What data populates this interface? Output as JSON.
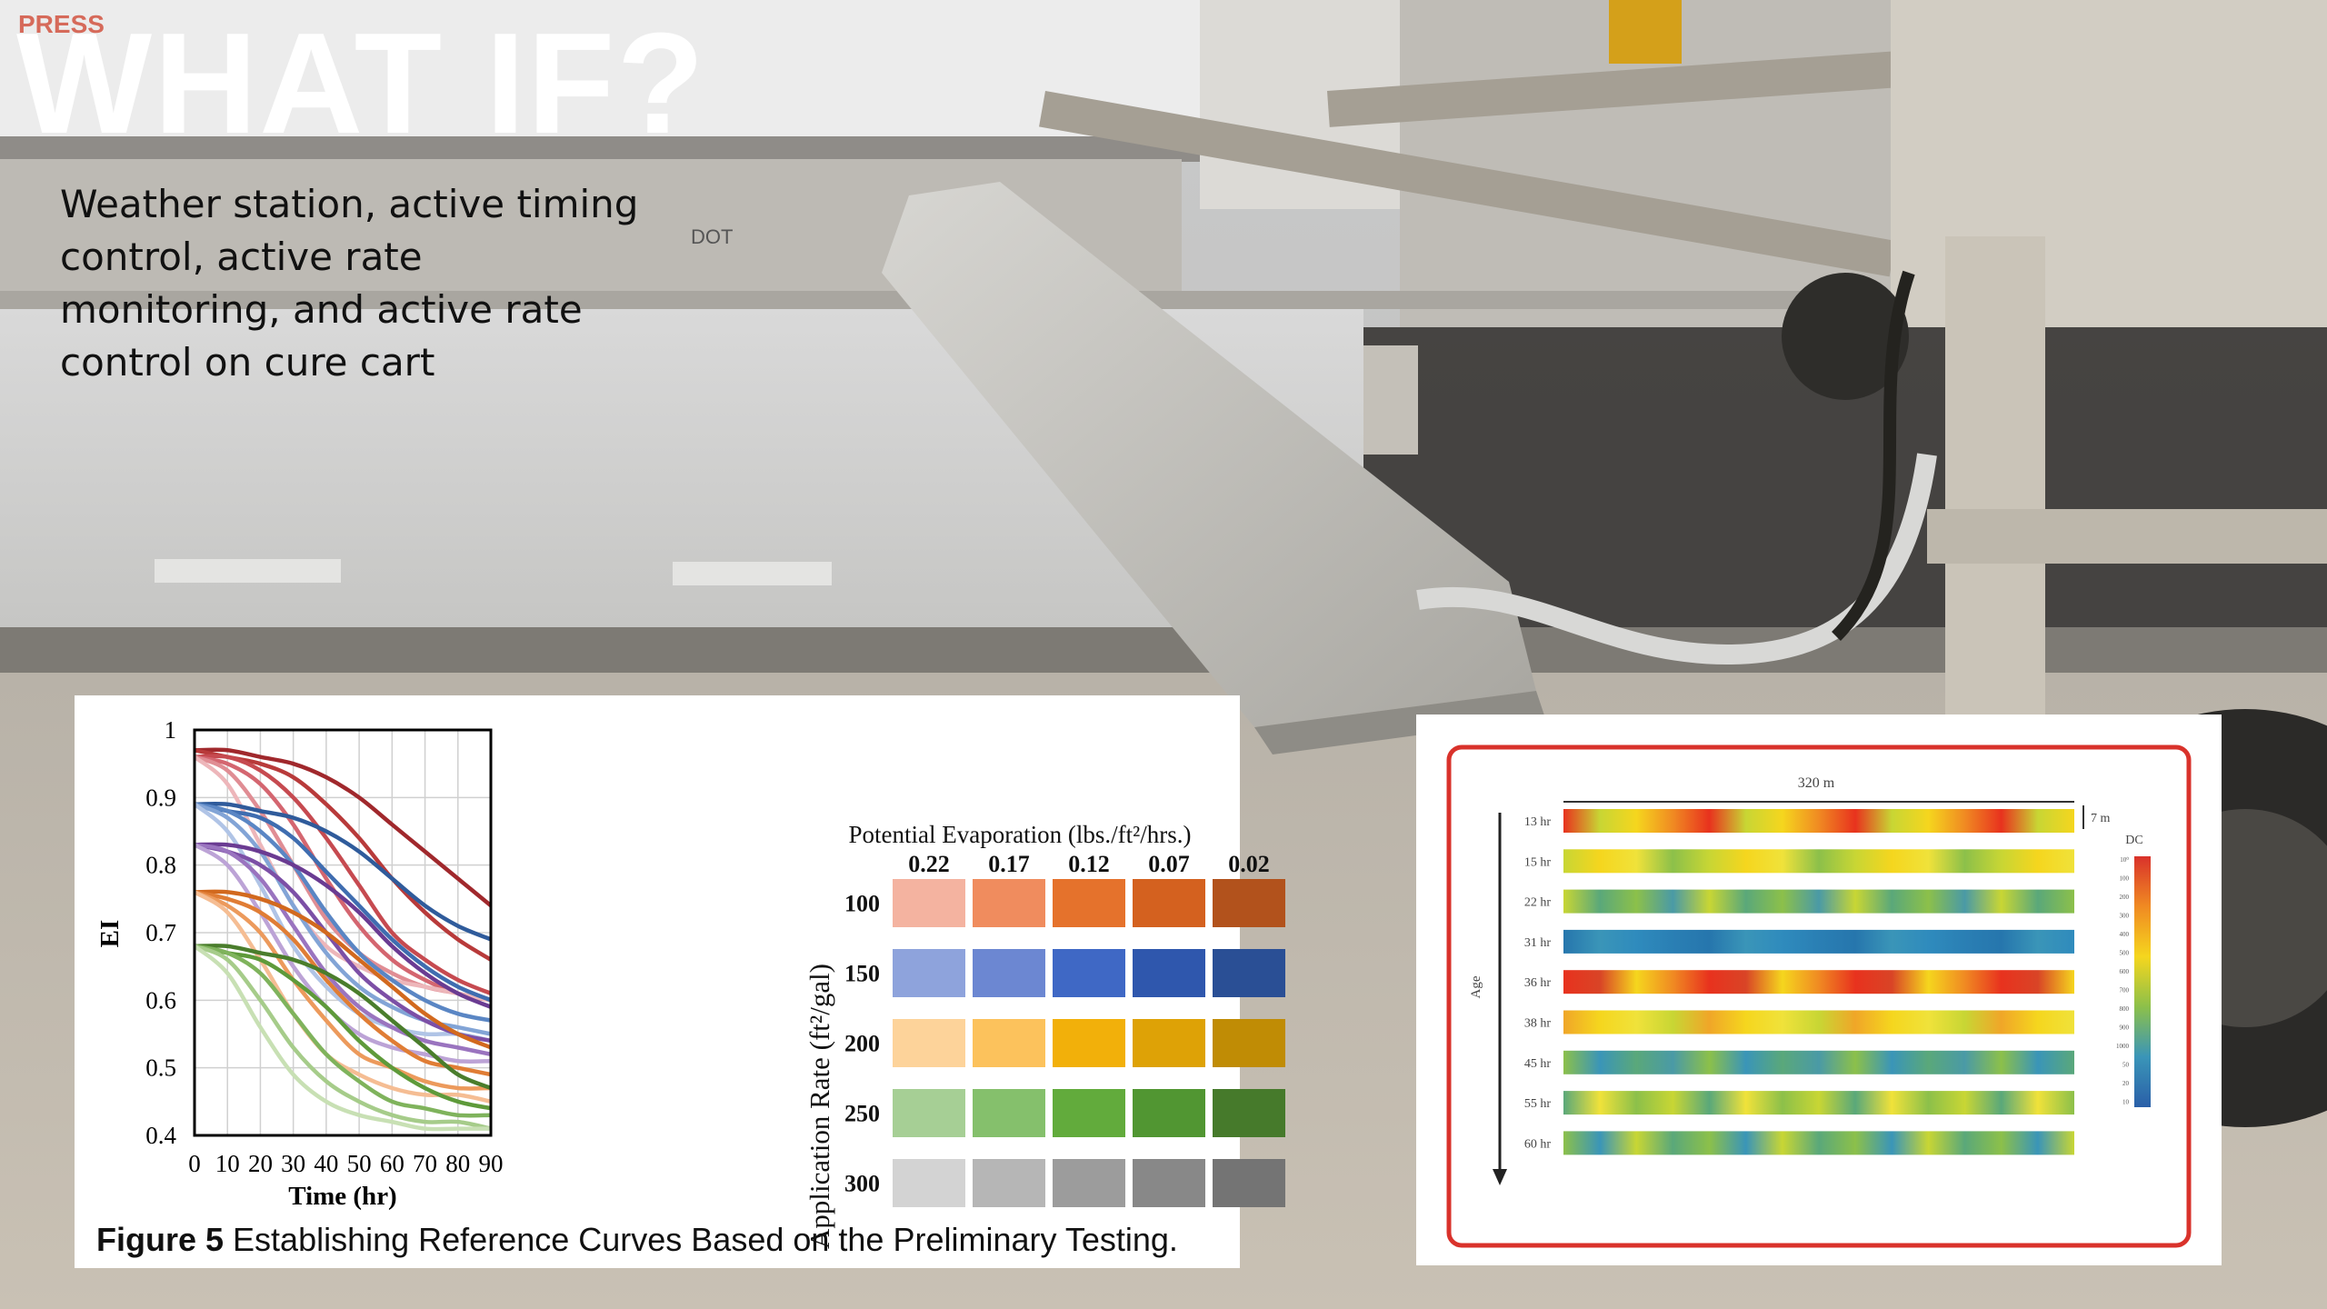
{
  "slide": {
    "title": "WHAT IF?",
    "body": "Weather station, active timing control, active rate monitoring, and active rate control on cure cart",
    "background_text": {
      "trailer_brand": "PRESS",
      "barrier_text": "DOT"
    }
  },
  "figure5": {
    "caption_label": "Figure 5",
    "caption_text": " Establishing Reference Curves Based on the Preliminary Testing.",
    "matrix": {
      "column_title": "Potential Evaporation (lbs./ft²/hrs.)",
      "row_title": "Application Rate (ft²/gal)",
      "columns": [
        "0.22",
        "0.17",
        "0.12",
        "0.07",
        "0.02"
      ],
      "rows": [
        "100",
        "150",
        "200",
        "250",
        "300"
      ],
      "colors": [
        [
          "#f4b3a0",
          "#f08c5e",
          "#e5722c",
          "#d4611f",
          "#b2521c"
        ],
        [
          "#8ea3dc",
          "#6c87d2",
          "#3f68c5",
          "#2f57ad",
          "#2a4f95"
        ],
        [
          "#fdd39a",
          "#fcc25c",
          "#f2b00a",
          "#dea206",
          "#c08c05"
        ],
        [
          "#a6cf95",
          "#85c06c",
          "#62ab3c",
          "#519632",
          "#467a2b"
        ],
        [
          "#d3d3d3",
          "#b6b6b6",
          "#9c9c9c",
          "#888888",
          "#747474"
        ]
      ]
    },
    "chart_data": {
      "type": "line",
      "title": "",
      "xlabel": "Time (hr)",
      "ylabel": "EI",
      "xlim": [
        0,
        90
      ],
      "ylim": [
        0.4,
        1
      ],
      "xticks": [
        "0",
        "10",
        "20",
        "30",
        "40",
        "50",
        "60",
        "70",
        "80",
        "90"
      ],
      "yticks": [
        "1",
        "0.9",
        "0.8",
        "0.7",
        "0.6",
        "0.5",
        "0.4"
      ],
      "grid": true,
      "x": [
        0,
        10,
        20,
        30,
        40,
        50,
        60,
        70,
        80,
        90
      ],
      "series": [
        {
          "color": "#a0282c",
          "values": [
            0.97,
            0.97,
            0.96,
            0.95,
            0.93,
            0.9,
            0.86,
            0.82,
            0.78,
            0.74
          ]
        },
        {
          "color": "#b83a3a",
          "values": [
            0.97,
            0.96,
            0.95,
            0.93,
            0.89,
            0.84,
            0.78,
            0.73,
            0.69,
            0.66
          ]
        },
        {
          "color": "#c64a50",
          "values": [
            0.96,
            0.96,
            0.94,
            0.9,
            0.84,
            0.77,
            0.7,
            0.66,
            0.63,
            0.61
          ]
        },
        {
          "color": "#d46670",
          "values": [
            0.96,
            0.95,
            0.92,
            0.86,
            0.78,
            0.71,
            0.66,
            0.63,
            0.61,
            0.6
          ]
        },
        {
          "color": "#e08d94",
          "values": [
            0.96,
            0.94,
            0.88,
            0.8,
            0.72,
            0.67,
            0.64,
            0.62,
            0.61,
            0.6
          ]
        },
        {
          "color": "#edb6ba",
          "values": [
            0.96,
            0.92,
            0.83,
            0.74,
            0.68,
            0.65,
            0.63,
            0.62,
            0.61,
            0.6
          ]
        },
        {
          "color": "#2f5b9b",
          "values": [
            0.89,
            0.89,
            0.88,
            0.87,
            0.85,
            0.82,
            0.78,
            0.74,
            0.71,
            0.69
          ]
        },
        {
          "color": "#3f6db0",
          "values": [
            0.89,
            0.88,
            0.87,
            0.84,
            0.79,
            0.74,
            0.69,
            0.65,
            0.62,
            0.6
          ]
        },
        {
          "color": "#5a86c4",
          "values": [
            0.89,
            0.88,
            0.85,
            0.8,
            0.73,
            0.67,
            0.63,
            0.6,
            0.58,
            0.57
          ]
        },
        {
          "color": "#82a4d6",
          "values": [
            0.89,
            0.87,
            0.82,
            0.74,
            0.67,
            0.62,
            0.59,
            0.57,
            0.56,
            0.55
          ]
        },
        {
          "color": "#b0c4e6",
          "values": [
            0.89,
            0.85,
            0.77,
            0.68,
            0.62,
            0.58,
            0.56,
            0.55,
            0.55,
            0.54
          ]
        },
        {
          "color": "#6a3b92",
          "values": [
            0.83,
            0.83,
            0.82,
            0.8,
            0.77,
            0.73,
            0.68,
            0.64,
            0.61,
            0.59
          ]
        },
        {
          "color": "#7c4fa6",
          "values": [
            0.83,
            0.82,
            0.8,
            0.76,
            0.7,
            0.64,
            0.6,
            0.57,
            0.55,
            0.54
          ]
        },
        {
          "color": "#9a74bf",
          "values": [
            0.83,
            0.82,
            0.78,
            0.71,
            0.64,
            0.59,
            0.56,
            0.54,
            0.53,
            0.52
          ]
        },
        {
          "color": "#bca3d6",
          "values": [
            0.83,
            0.8,
            0.73,
            0.65,
            0.59,
            0.55,
            0.53,
            0.52,
            0.51,
            0.51
          ]
        },
        {
          "color": "#d2691e",
          "values": [
            0.76,
            0.76,
            0.75,
            0.73,
            0.7,
            0.66,
            0.62,
            0.58,
            0.55,
            0.53
          ]
        },
        {
          "color": "#e07d35",
          "values": [
            0.76,
            0.75,
            0.73,
            0.69,
            0.63,
            0.58,
            0.54,
            0.51,
            0.5,
            0.49
          ]
        },
        {
          "color": "#ec9a5c",
          "values": [
            0.76,
            0.74,
            0.7,
            0.63,
            0.57,
            0.52,
            0.5,
            0.48,
            0.47,
            0.47
          ]
        },
        {
          "color": "#f5bd93",
          "values": [
            0.76,
            0.73,
            0.66,
            0.58,
            0.52,
            0.49,
            0.47,
            0.46,
            0.46,
            0.45
          ]
        },
        {
          "color": "#4a7d2c",
          "values": [
            0.68,
            0.68,
            0.67,
            0.66,
            0.64,
            0.61,
            0.57,
            0.53,
            0.49,
            0.47
          ]
        },
        {
          "color": "#5e9a3a",
          "values": [
            0.68,
            0.67,
            0.66,
            0.63,
            0.59,
            0.54,
            0.5,
            0.47,
            0.45,
            0.44
          ]
        },
        {
          "color": "#7fb35c",
          "values": [
            0.68,
            0.67,
            0.64,
            0.58,
            0.52,
            0.48,
            0.45,
            0.44,
            0.43,
            0.43
          ]
        },
        {
          "color": "#a6cc8a",
          "values": [
            0.68,
            0.66,
            0.6,
            0.53,
            0.48,
            0.45,
            0.43,
            0.42,
            0.42,
            0.41
          ]
        },
        {
          "color": "#c8e0b4",
          "values": [
            0.68,
            0.64,
            0.56,
            0.49,
            0.45,
            0.43,
            0.42,
            0.41,
            0.41,
            0.41
          ]
        }
      ]
    }
  },
  "heatmap_figure": {
    "width_label": "320 m",
    "lane_width_label": "7 m",
    "axis_label": "Age",
    "legend_title": "DC",
    "rows": [
      "13 hr",
      "15 hr",
      "22 hr",
      "31 hr",
      "36 hr",
      "38 hr",
      "45 hr",
      "55 hr",
      "60 hr"
    ],
    "row_palettes": [
      [
        "#e8321e",
        "#f08a22",
        "#f5d61e",
        "#c8d634"
      ],
      [
        "#f5d61e",
        "#c8d634",
        "#8cc04a",
        "#f0e23a"
      ],
      [
        "#8cc04a",
        "#5aa87a",
        "#c8d634",
        "#4a9aa6"
      ],
      [
        "#2a7fb4",
        "#2f8bbd",
        "#3a95b8",
        "#2676ad"
      ],
      [
        "#e8321e",
        "#f08a22",
        "#f5d61e",
        "#d94426"
      ],
      [
        "#f5d61e",
        "#f0a628",
        "#c8d634",
        "#f0e23a"
      ],
      [
        "#5aa87a",
        "#3a95b8",
        "#8cc04a",
        "#4a9aa6"
      ],
      [
        "#c8d634",
        "#8cc04a",
        "#f0e23a",
        "#5aa87a"
      ],
      [
        "#8cc04a",
        "#5aa87a",
        "#c8d634",
        "#3a95b8"
      ]
    ],
    "legend_ticks": [
      "10⁰",
      "100",
      "200",
      "300",
      "400",
      "500",
      "600",
      "700",
      "800",
      "900",
      "1000",
      "50",
      "20",
      "10"
    ],
    "frame_color": "#d9322b"
  }
}
